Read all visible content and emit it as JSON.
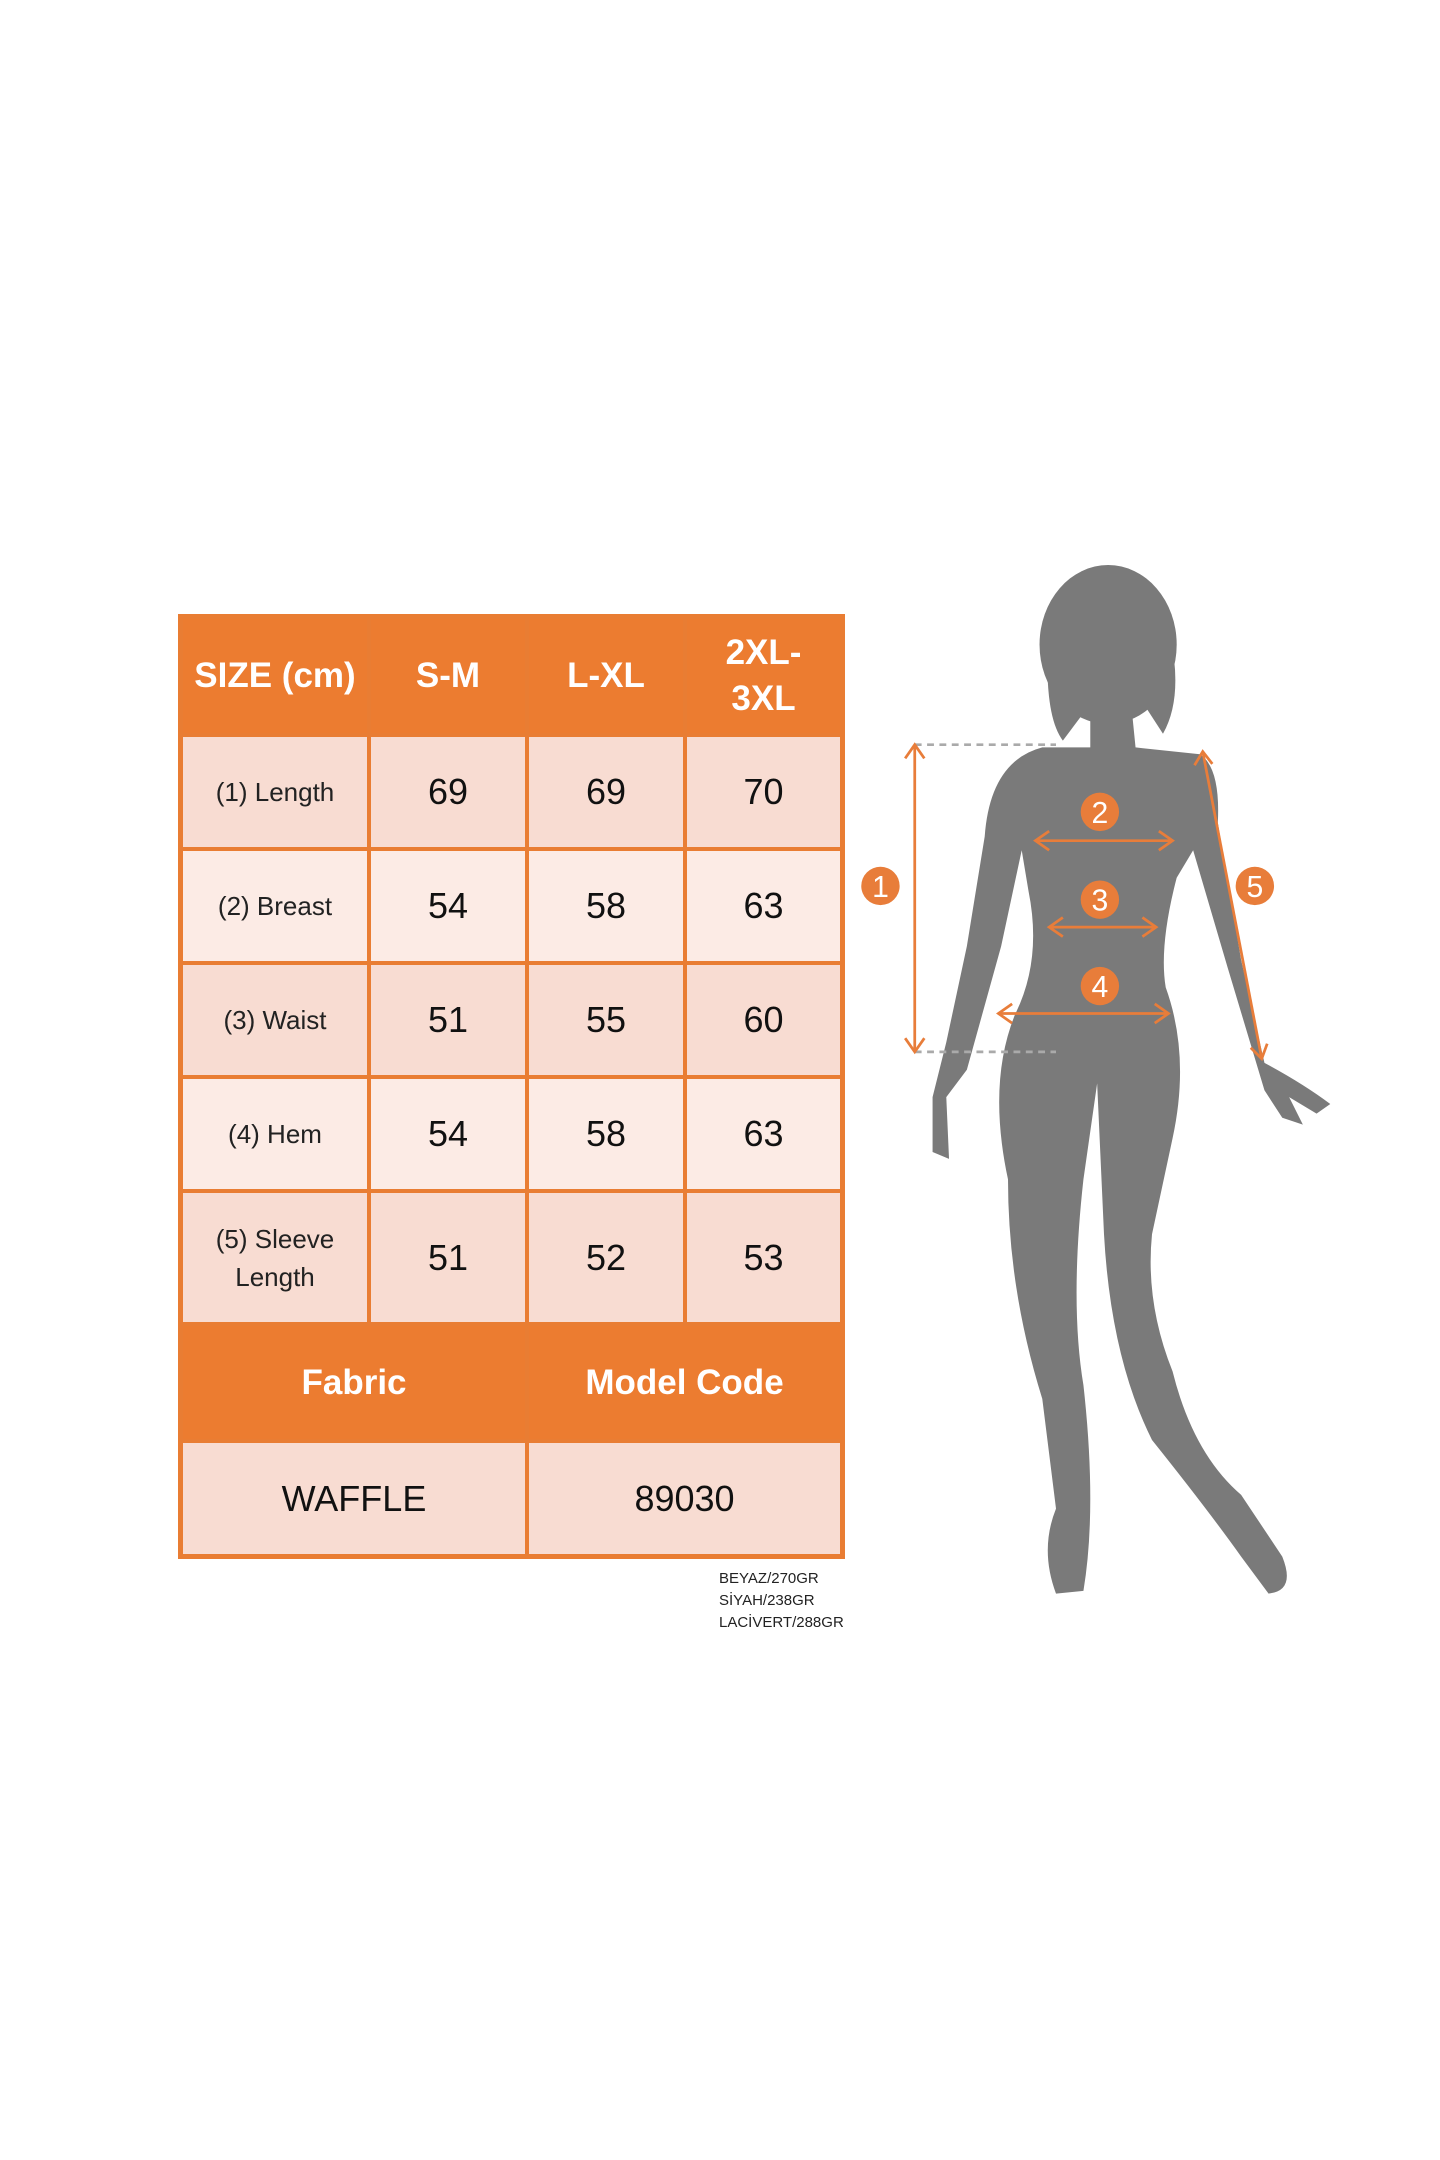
{
  "table": {
    "header": [
      "SIZE (cm)",
      "S-M",
      "L-XL",
      "2XL-3XL"
    ],
    "rows": [
      {
        "label": "(1) Length",
        "values": [
          "69",
          "69",
          "70"
        ]
      },
      {
        "label": "(2) Breast",
        "values": [
          "54",
          "58",
          "63"
        ]
      },
      {
        "label": "(3) Waist",
        "values": [
          "51",
          "55",
          "60"
        ]
      },
      {
        "label": "(4) Hem",
        "values": [
          "54",
          "58",
          "63"
        ]
      },
      {
        "label": "(5) Sleeve Length",
        "values": [
          "51",
          "52",
          "53"
        ]
      }
    ],
    "fabric_header": "Fabric",
    "model_code_header": "Model Code",
    "fabric_value": "WAFFLE",
    "model_code_value": "89030"
  },
  "notes": [
    "BEYAZ/270GR",
    "SİYAH/238GR",
    "LACİVERT/288GR"
  ],
  "figure": {
    "markers": [
      "1",
      "2",
      "3",
      "4",
      "5"
    ]
  },
  "colors": {
    "accent": "#ec7c30",
    "row_dark": "#f8dcd2",
    "row_light": "#fcebe5",
    "silhouette": "#7a7a7a"
  }
}
